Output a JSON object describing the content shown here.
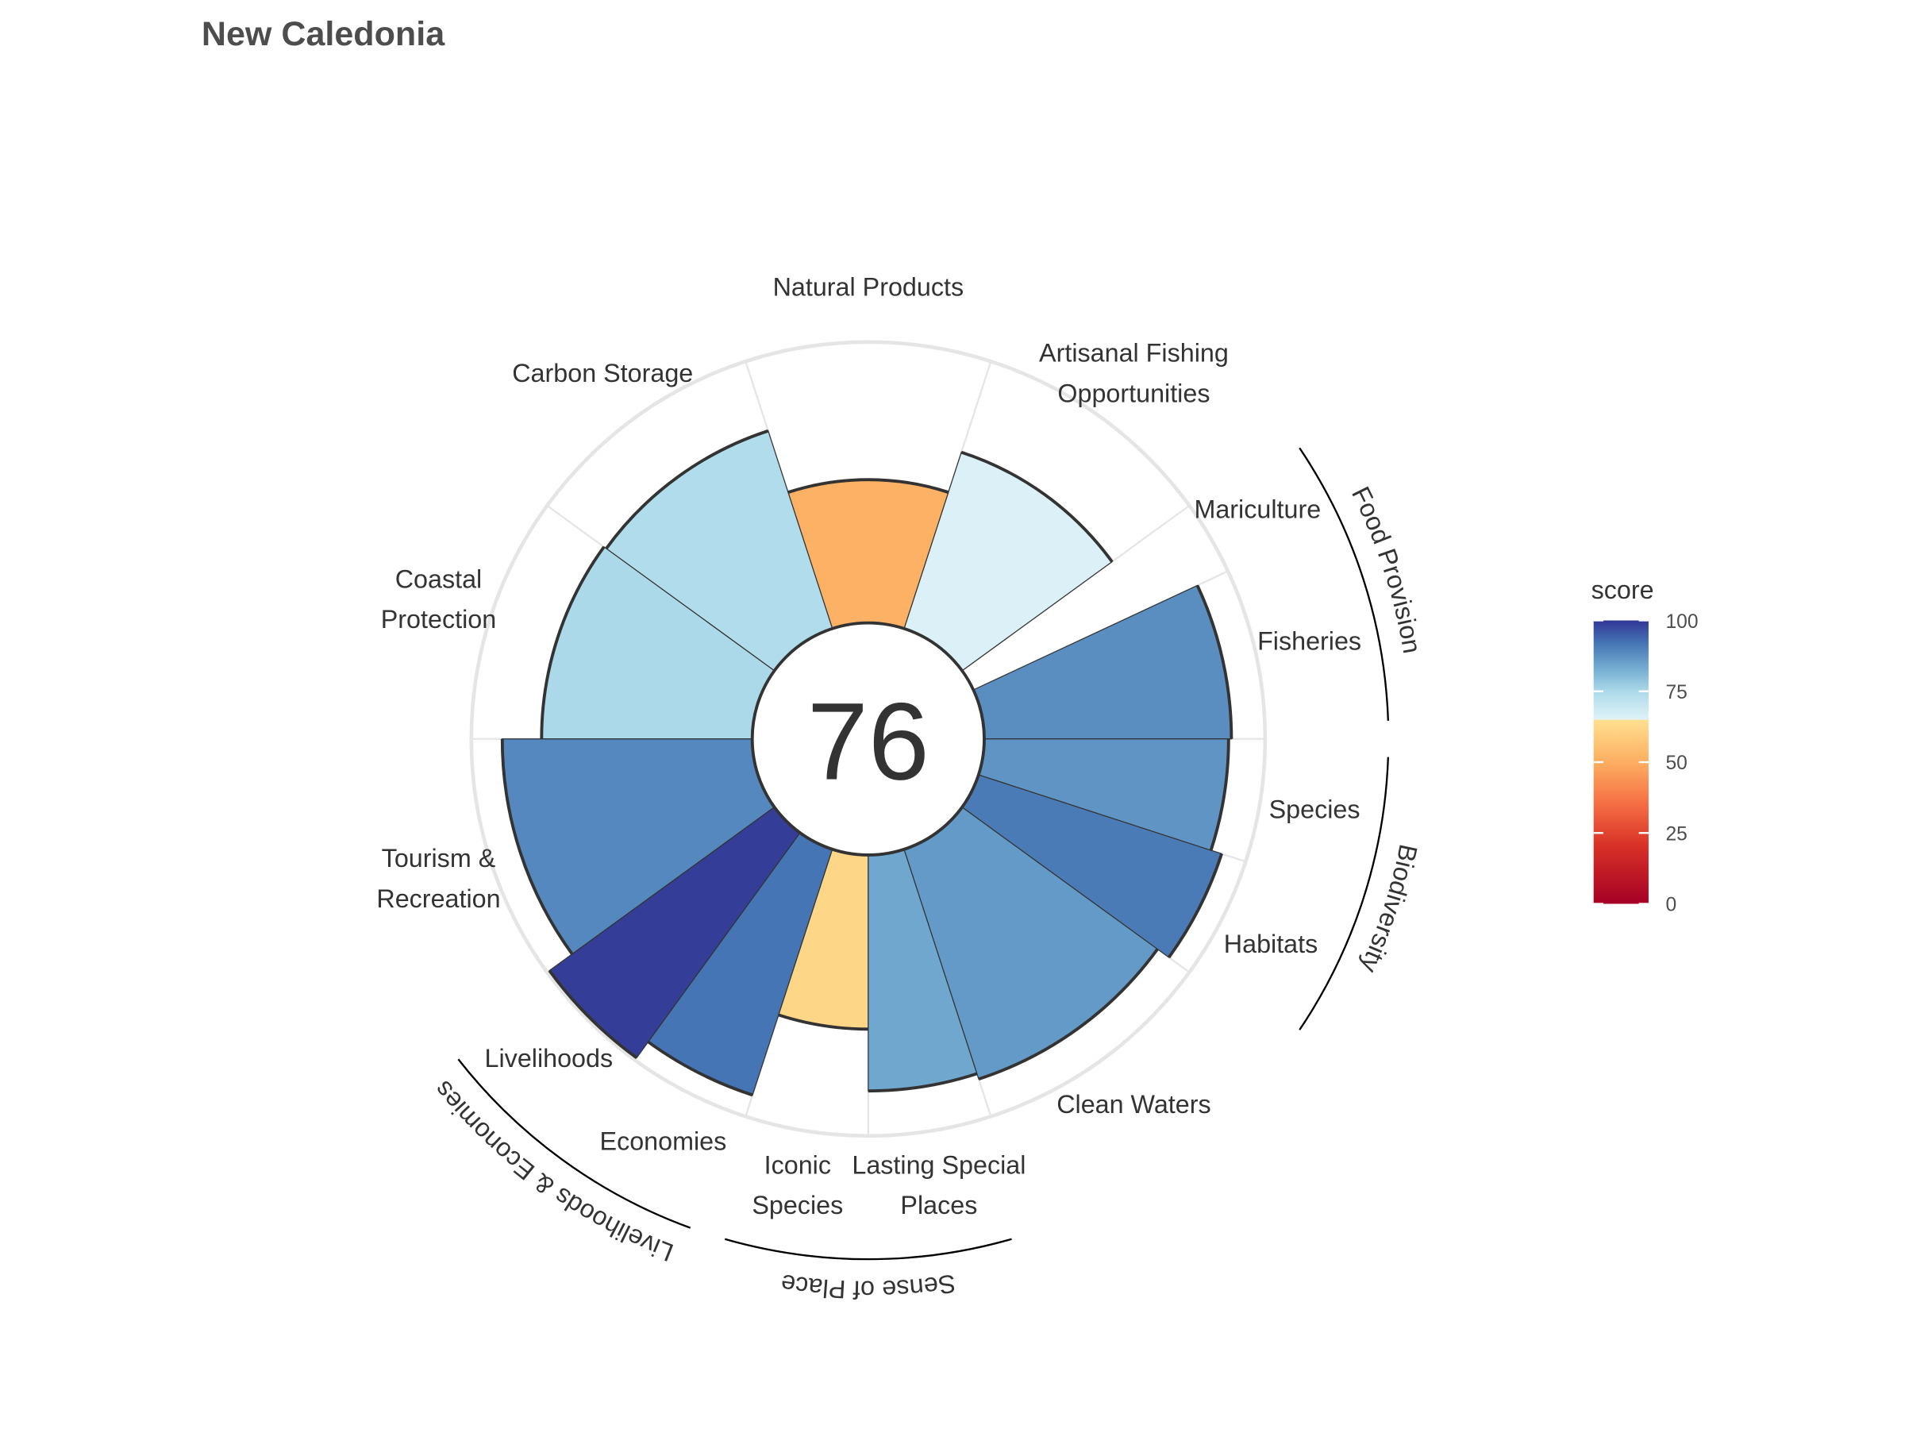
{
  "chart_data": {
    "type": "flower",
    "title": "New Caledonia",
    "score": 76,
    "categories": [
      "Fisheries",
      "Mariculture",
      "Artisanal Fishing\nOpportunities",
      "Natural Products",
      "Carbon Storage",
      "Coastal\nProtection",
      "Tourism &\nRecreation",
      "Livelihoods",
      "Economies",
      "Iconic\nSpecies",
      "Lasting Special\nPlaces",
      "Clean Waters",
      "Habitats",
      "Species"
    ],
    "values": [
      88,
      0,
      66,
      51,
      74,
      75,
      89,
      99,
      92,
      62,
      84,
      86,
      91,
      87
    ],
    "groups": [
      {
        "name": "Food Provision"
      },
      {
        "name": "Biodiversity"
      },
      {
        "name": "Sense of Place"
      },
      {
        "name": "Livelihoods & Economies"
      }
    ],
    "legend_title": "score",
    "lim": [
      0,
      100
    ],
    "ticks": [
      0,
      25,
      50,
      75,
      100
    ],
    "colorscale": [
      [
        0,
        "#a50026"
      ],
      [
        20,
        "#d73027"
      ],
      [
        35,
        "#f46d43"
      ],
      [
        50,
        "#fdae61"
      ],
      [
        64.9,
        "#fee090"
      ],
      [
        65,
        "#e0f3f8"
      ],
      [
        75,
        "#abd9e9"
      ],
      [
        83,
        "#74add1"
      ],
      [
        92,
        "#4575b4"
      ],
      [
        100,
        "#313695"
      ]
    ]
  }
}
